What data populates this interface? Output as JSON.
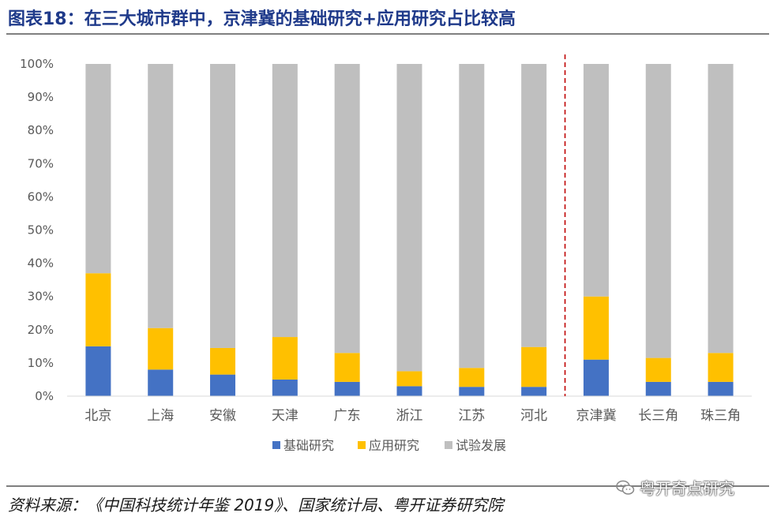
{
  "header": {
    "title": "图表18：在三大城市群中，京津冀的基础研究+应用研究占比较高"
  },
  "footer": {
    "source": "资料来源：《中国科技统计年鉴 2019》、国家统计局、粤开证券研究院",
    "watermark": "粤开奇点研究",
    "watermark_icon": "wechat-icon"
  },
  "chart_data": {
    "type": "bar",
    "stacked": true,
    "categories": [
      "北京",
      "上海",
      "安徽",
      "天津",
      "广东",
      "浙江",
      "江苏",
      "河北",
      "京津冀",
      "长三角",
      "珠三角"
    ],
    "series": [
      {
        "name": "基础研究",
        "color": "#4472c4",
        "values": [
          15,
          8,
          6.5,
          5,
          4.3,
          3,
          2.8,
          2.8,
          11,
          4.3,
          4.3
        ]
      },
      {
        "name": "应用研究",
        "color": "#ffc000",
        "values": [
          22,
          12.5,
          8,
          12.8,
          8.7,
          4.5,
          5.7,
          12,
          19,
          7.2,
          8.7
        ]
      },
      {
        "name": "试验发展",
        "color": "#bfbfbf",
        "values": [
          63,
          79.5,
          85.5,
          82.2,
          87,
          92.5,
          91.5,
          85.2,
          70,
          88.5,
          87
        ]
      }
    ],
    "y_ticks": [
      "0%",
      "10%",
      "20%",
      "30%",
      "40%",
      "50%",
      "60%",
      "70%",
      "80%",
      "90%",
      "100%"
    ],
    "ylim": [
      0,
      100
    ],
    "divider_after_category": "河北",
    "divider_color": "#c00000",
    "legend_position": "bottom",
    "grid": false
  }
}
